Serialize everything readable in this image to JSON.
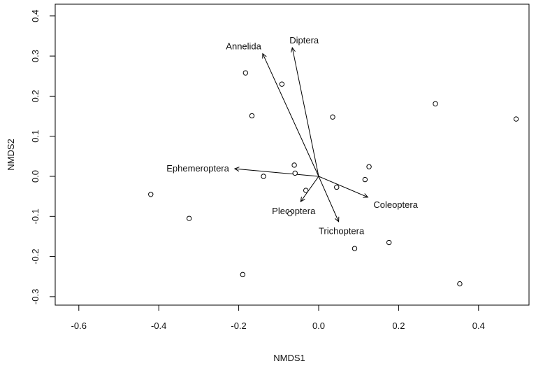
{
  "chart_data": {
    "type": "scatter",
    "title": "",
    "xlabel": "NMDS1",
    "ylabel": "NMDS2",
    "xlim": [
      -0.65,
      0.52
    ],
    "ylim": [
      -0.33,
      0.41
    ],
    "xticks": [
      -0.6,
      -0.4,
      -0.2,
      0.0,
      0.2,
      0.4
    ],
    "xtick_labels": [
      "-0.6",
      "-0.4",
      "-0.2",
      "0.0",
      "0.2",
      "0.4"
    ],
    "yticks": [
      -0.3,
      -0.2,
      -0.1,
      0.0,
      0.1,
      0.2,
      0.3,
      0.4
    ],
    "ytick_labels": [
      "-0.3",
      "-0.2",
      "-0.1",
      "0.0",
      "0.1",
      "0.2",
      "0.3",
      "0.4"
    ],
    "grid": false,
    "sites": [
      {
        "x": -0.42,
        "y": -0.045
      },
      {
        "x": -0.324,
        "y": -0.105
      },
      {
        "x": -0.19,
        "y": -0.245
      },
      {
        "x": -0.183,
        "y": 0.258
      },
      {
        "x": -0.167,
        "y": 0.151
      },
      {
        "x": -0.138,
        "y": 0.0
      },
      {
        "x": -0.092,
        "y": 0.23
      },
      {
        "x": -0.072,
        "y": -0.093
      },
      {
        "x": -0.061,
        "y": 0.028
      },
      {
        "x": -0.059,
        "y": 0.008
      },
      {
        "x": -0.032,
        "y": -0.035
      },
      {
        "x": 0.035,
        "y": 0.148
      },
      {
        "x": 0.045,
        "y": -0.027
      },
      {
        "x": 0.09,
        "y": -0.18
      },
      {
        "x": 0.116,
        "y": -0.008
      },
      {
        "x": 0.126,
        "y": 0.024
      },
      {
        "x": 0.176,
        "y": -0.165
      },
      {
        "x": 0.292,
        "y": 0.181
      },
      {
        "x": 0.353,
        "y": -0.268
      },
      {
        "x": 0.494,
        "y": 0.143
      }
    ],
    "vectors": [
      {
        "label": "Annelida",
        "x": -0.14,
        "y": 0.306
      },
      {
        "label": "Diptera",
        "x": -0.066,
        "y": 0.321
      },
      {
        "label": "Ephemeroptera",
        "x": -0.21,
        "y": 0.019
      },
      {
        "label": "Plecoptera",
        "x": -0.045,
        "y": -0.063
      },
      {
        "label": "Trichoptera",
        "x": 0.05,
        "y": -0.113
      },
      {
        "label": "Coleoptera",
        "x": 0.123,
        "y": -0.052
      }
    ]
  }
}
